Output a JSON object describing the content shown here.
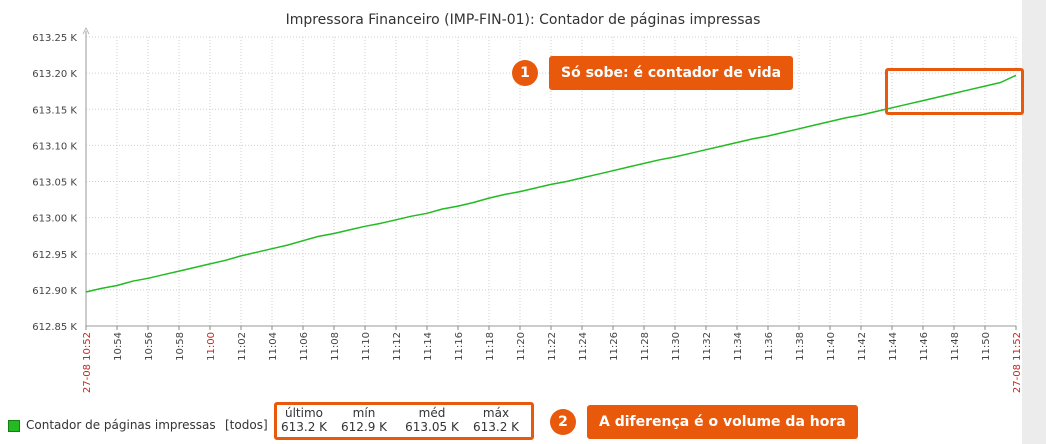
{
  "colors": {
    "series": "#22bb22",
    "accent": "#e8590c",
    "axis_highlight": "#cc2222"
  },
  "chart_data": {
    "type": "line",
    "title": "Impressora Financeiro (IMP-FIN-01): Contador de páginas impressas",
    "y_ticks": [
      "613.25 K",
      "613.20 K",
      "613.15 K",
      "613.10 K",
      "613.05 K",
      "613.00 K",
      "612.95 K",
      "612.90 K",
      "612.85 K"
    ],
    "ylim": [
      612850,
      613250
    ],
    "x_ticks": [
      "27-08 10:52",
      "10:54",
      "10:56",
      "10:58",
      "11:00",
      "11:02",
      "11:04",
      "11:06",
      "11:08",
      "11:10",
      "11:12",
      "11:14",
      "11:16",
      "11:18",
      "11:20",
      "11:22",
      "11:24",
      "11:26",
      "11:28",
      "11:30",
      "11:32",
      "11:34",
      "11:36",
      "11:38",
      "11:40",
      "11:42",
      "11:44",
      "11:46",
      "11:48",
      "11:50",
      "27-08 11:52"
    ],
    "x_ticks_highlighted": [
      "27-08 10:52",
      "11:00",
      "27-08 11:52"
    ],
    "xlim_minutes": [
      0,
      60
    ],
    "grid": true,
    "series": [
      {
        "name": "Contador de páginas impressas",
        "x": [
          0,
          1,
          2,
          3,
          4,
          5,
          6,
          7,
          8,
          9,
          10,
          11,
          12,
          13,
          14,
          15,
          16,
          17,
          18,
          19,
          20,
          21,
          22,
          23,
          24,
          25,
          26,
          27,
          28,
          29,
          30,
          31,
          32,
          33,
          34,
          35,
          36,
          37,
          38,
          39,
          40,
          41,
          42,
          43,
          44,
          45,
          46,
          47,
          48,
          49,
          50,
          51,
          52,
          53,
          54,
          55,
          56,
          57,
          58,
          59,
          60
        ],
        "values": [
          612897,
          612902,
          612906,
          612912,
          612916,
          612921,
          612926,
          612931,
          612936,
          612941,
          612947,
          612952,
          612957,
          612962,
          612968,
          612974,
          612978,
          612983,
          612988,
          612992,
          612997,
          613002,
          613006,
          613012,
          613016,
          613021,
          613027,
          613032,
          613036,
          613041,
          613046,
          613050,
          613055,
          613060,
          613065,
          613070,
          613075,
          613080,
          613084,
          613089,
          613094,
          613099,
          613104,
          613109,
          613113,
          613118,
          613123,
          613128,
          613133,
          613138,
          613142,
          613147,
          613152,
          613157,
          613162,
          613167,
          613172,
          613177,
          613182,
          613187,
          613197
        ]
      }
    ]
  },
  "legend": {
    "name": "Contador de páginas impressas",
    "scope": "[todos]",
    "headers": {
      "last": "último",
      "min": "mín",
      "avg": "méd",
      "max": "máx"
    },
    "values": {
      "last": "613.2 K",
      "min": "612.9 K",
      "avg": "613.05 K",
      "max": "613.2 K"
    }
  },
  "callouts": [
    {
      "number": "1",
      "text": "Só sobe: é contador de vida"
    },
    {
      "number": "2",
      "text": "A diferença é o volume da hora"
    }
  ]
}
